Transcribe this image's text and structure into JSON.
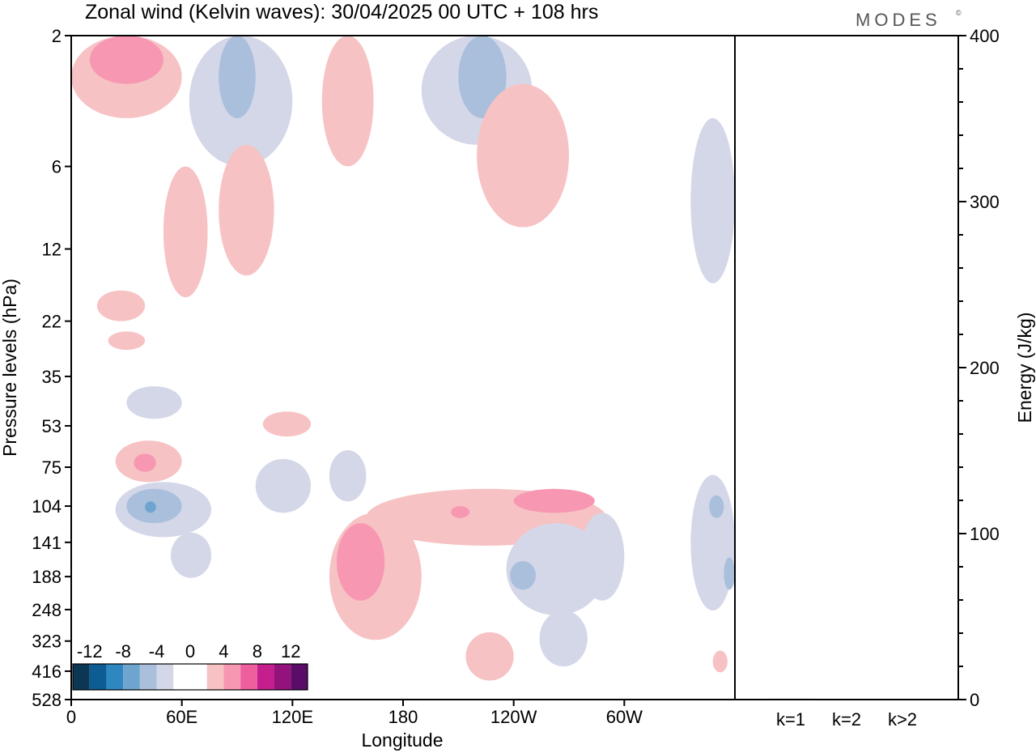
{
  "title": "Zonal wind (Kelvin waves):  30/04/2025  00 UTC  + 108 hrs",
  "brand": "MODES",
  "brand_mark": "©",
  "chart_data": [
    {
      "type": "heatmap",
      "title": "Zonal wind (Kelvin waves):  30/04/2025  00 UTC  + 108 hrs",
      "xlabel": "Longitude",
      "ylabel": "Pressure levels (hPa)",
      "x_ticks": [
        "0",
        "60E",
        "120E",
        "180",
        "120W",
        "60W"
      ],
      "y_ticks": [
        "2",
        "6",
        "12",
        "22",
        "35",
        "53",
        "75",
        "104",
        "141",
        "188",
        "248",
        "323",
        "416",
        "528"
      ],
      "colorbar": {
        "tick_labels": [
          "-12",
          "-8",
          "-4",
          "0",
          "4",
          "8",
          "12"
        ],
        "colors": [
          "#0c3754",
          "#0d5c93",
          "#2f87c0",
          "#6da5cf",
          "#a9bfdc",
          "#d4d7e8",
          "#ffffff",
          "#ffffff",
          "#f7c2c4",
          "#f797b2",
          "#ee5f9e",
          "#c41f8c",
          "#94127c",
          "#5a0c68"
        ]
      },
      "regions": [
        {
          "sign": "positive",
          "level": 1,
          "lon": [
            0,
            30
          ],
          "p": [
            2,
            4
          ]
        },
        {
          "sign": "positive",
          "level": 2,
          "lon": [
            5,
            25
          ],
          "p": [
            2,
            3
          ]
        },
        {
          "sign": "negative",
          "level": 1,
          "lon": [
            32,
            60
          ],
          "p": [
            2,
            6
          ]
        },
        {
          "sign": "negative",
          "level": 2,
          "lon": [
            40,
            50
          ],
          "p": [
            2,
            4
          ]
        },
        {
          "sign": "positive",
          "level": 1,
          "lon": [
            25,
            37
          ],
          "p": [
            6,
            18
          ]
        },
        {
          "sign": "positive",
          "level": 1,
          "lon": [
            40,
            55
          ],
          "p": [
            5,
            15
          ]
        },
        {
          "sign": "positive",
          "level": 1,
          "lon": [
            68,
            82
          ],
          "p": [
            2,
            6
          ]
        },
        {
          "sign": "negative",
          "level": 1,
          "lon": [
            95,
            125
          ],
          "p": [
            2,
            5
          ]
        },
        {
          "sign": "negative",
          "level": 2,
          "lon": [
            105,
            118
          ],
          "p": [
            2,
            4
          ]
        },
        {
          "sign": "positive",
          "level": 1,
          "lon": [
            110,
            135
          ],
          "p": [
            3,
            10
          ]
        },
        {
          "sign": "negative",
          "level": 1,
          "lon": [
            168,
            180
          ],
          "p": [
            4,
            16
          ]
        },
        {
          "sign": "positive",
          "level": 1,
          "lon": [
            7,
            20
          ],
          "p": [
            17,
            22
          ]
        },
        {
          "sign": "positive",
          "level": 1,
          "lon": [
            10,
            20
          ],
          "p": [
            24,
            28
          ]
        },
        {
          "sign": "negative",
          "level": 1,
          "lon": [
            15,
            30
          ],
          "p": [
            38,
            50
          ]
        },
        {
          "sign": "positive",
          "level": 1,
          "lon": [
            52,
            65
          ],
          "p": [
            47,
            58
          ]
        },
        {
          "sign": "positive",
          "level": 1,
          "lon": [
            12,
            30
          ],
          "p": [
            60,
            85
          ]
        },
        {
          "sign": "positive",
          "level": 2,
          "lon": [
            17,
            23
          ],
          "p": [
            67,
            78
          ]
        },
        {
          "sign": "negative",
          "level": 1,
          "lon": [
            12,
            38
          ],
          "p": [
            85,
            135
          ]
        },
        {
          "sign": "negative",
          "level": 2,
          "lon": [
            15,
            30
          ],
          "p": [
            90,
            120
          ]
        },
        {
          "sign": "negative",
          "level": 3,
          "lon": [
            20,
            23
          ],
          "p": [
            100,
            110
          ]
        },
        {
          "sign": "negative",
          "level": 1,
          "lon": [
            27,
            38
          ],
          "p": [
            130,
            190
          ]
        },
        {
          "sign": "negative",
          "level": 1,
          "lon": [
            50,
            65
          ],
          "p": [
            70,
            110
          ]
        },
        {
          "sign": "negative",
          "level": 1,
          "lon": [
            70,
            80
          ],
          "p": [
            65,
            100
          ]
        },
        {
          "sign": "positive",
          "level": 1,
          "lon": [
            70,
            95
          ],
          "p": [
            110,
            320
          ]
        },
        {
          "sign": "positive",
          "level": 1,
          "lon": [
            80,
            145
          ],
          "p": [
            90,
            145
          ]
        },
        {
          "sign": "positive",
          "level": 2,
          "lon": [
            72,
            85
          ],
          "p": [
            120,
            230
          ]
        },
        {
          "sign": "positive",
          "level": 2,
          "lon": [
            120,
            142
          ],
          "p": [
            90,
            110
          ]
        },
        {
          "sign": "positive",
          "level": 2,
          "lon": [
            103,
            108
          ],
          "p": [
            104,
            115
          ]
        },
        {
          "sign": "negative",
          "level": 1,
          "lon": [
            118,
            145
          ],
          "p": [
            120,
            260
          ]
        },
        {
          "sign": "negative",
          "level": 2,
          "lon": [
            119,
            126
          ],
          "p": [
            165,
            210
          ]
        },
        {
          "sign": "negative",
          "level": 1,
          "lon": [
            127,
            140
          ],
          "p": [
            250,
            400
          ]
        },
        {
          "sign": "negative",
          "level": 1,
          "lon": [
            138,
            150
          ],
          "p": [
            110,
            230
          ]
        },
        {
          "sign": "positive",
          "level": 1,
          "lon": [
            107,
            120
          ],
          "p": [
            300,
            450
          ]
        },
        {
          "sign": "negative",
          "level": 1,
          "lon": [
            168,
            180
          ],
          "p": [
            80,
            250
          ]
        },
        {
          "sign": "negative",
          "level": 2,
          "lon": [
            173,
            177
          ],
          "p": [
            95,
            115
          ]
        },
        {
          "sign": "negative",
          "level": 2,
          "lon": [
            177,
            180
          ],
          "p": [
            160,
            210
          ]
        },
        {
          "sign": "positive",
          "level": 1,
          "lon": [
            174,
            178
          ],
          "p": [
            350,
            420
          ]
        }
      ]
    },
    {
      "type": "bar",
      "categories": [
        "k=1",
        "k=2",
        "k>2"
      ],
      "values": [
        0.5,
        0,
        0.3
      ],
      "ylabel": "Energy (J/kg)",
      "ylim": [
        0,
        400
      ],
      "y_ticks": [
        0,
        100,
        200,
        300,
        400
      ]
    }
  ]
}
